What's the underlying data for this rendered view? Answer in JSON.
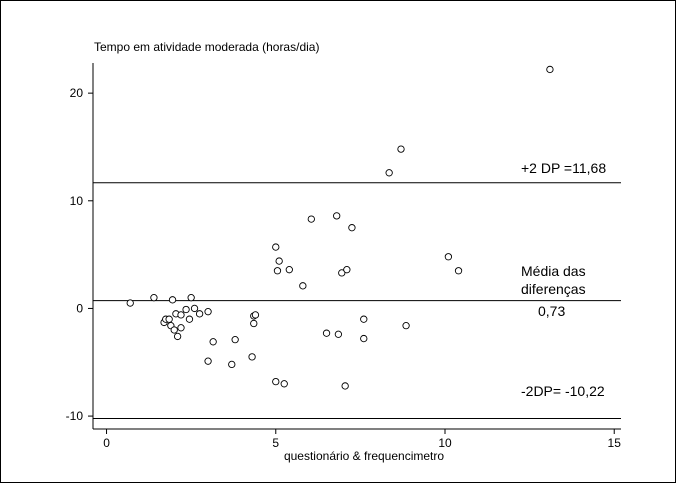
{
  "chart_data": {
    "type": "scatter",
    "title": "Tempo em atividade moderada (horas/dia)",
    "xlabel": "questionário & frequencimetro",
    "ylabel": "",
    "xlim": [
      -0.4,
      15.2
    ],
    "ylim": [
      -11.2,
      22.8
    ],
    "xticks": [
      0,
      5,
      10,
      15
    ],
    "yticks": [
      -10,
      0,
      10,
      20
    ],
    "grid": false,
    "reference_lines": [
      {
        "y": 11.68,
        "label": "+2 DP =11,68"
      },
      {
        "y": 0.73,
        "label": "Média das diferenças 0,73"
      },
      {
        "y": -10.22,
        "label": "-2DP= -10,22"
      }
    ],
    "annotations": {
      "upper": "+2 DP =11,68",
      "mean_line1": "Média das",
      "mean_line2": "diferenças",
      "mean_value": "0,73",
      "lower": "-2DP= -10,22"
    },
    "points": [
      [
        0.7,
        0.5
      ],
      [
        1.4,
        1.0
      ],
      [
        1.7,
        -1.3
      ],
      [
        1.75,
        -1.0
      ],
      [
        1.85,
        -1.0
      ],
      [
        1.9,
        -1.6
      ],
      [
        1.95,
        0.8
      ],
      [
        2.0,
        -2.0
      ],
      [
        2.05,
        -0.5
      ],
      [
        2.1,
        -2.6
      ],
      [
        2.2,
        -0.6
      ],
      [
        2.2,
        -1.8
      ],
      [
        2.35,
        -0.1
      ],
      [
        2.45,
        -1.0
      ],
      [
        2.5,
        1.0
      ],
      [
        2.6,
        0.0
      ],
      [
        2.75,
        -0.5
      ],
      [
        3.0,
        -0.3
      ],
      [
        3.0,
        -4.9
      ],
      [
        3.15,
        -3.1
      ],
      [
        3.7,
        -5.2
      ],
      [
        3.8,
        -2.9
      ],
      [
        4.3,
        -4.5
      ],
      [
        4.35,
        -0.7
      ],
      [
        4.35,
        -1.4
      ],
      [
        4.4,
        -0.6
      ],
      [
        5.0,
        -6.8
      ],
      [
        5.0,
        5.7
      ],
      [
        5.1,
        4.4
      ],
      [
        5.05,
        3.5
      ],
      [
        5.25,
        -7.0
      ],
      [
        5.4,
        3.6
      ],
      [
        5.8,
        2.1
      ],
      [
        6.05,
        8.3
      ],
      [
        6.5,
        -2.3
      ],
      [
        6.8,
        8.6
      ],
      [
        6.85,
        -2.4
      ],
      [
        6.95,
        3.3
      ],
      [
        7.05,
        -7.2
      ],
      [
        7.1,
        3.6
      ],
      [
        7.25,
        7.5
      ],
      [
        7.6,
        -1.0
      ],
      [
        7.6,
        -2.8
      ],
      [
        8.35,
        12.6
      ],
      [
        8.7,
        14.8
      ],
      [
        8.85,
        -1.6
      ],
      [
        10.1,
        4.8
      ],
      [
        10.4,
        3.5
      ],
      [
        13.1,
        22.2
      ]
    ]
  }
}
